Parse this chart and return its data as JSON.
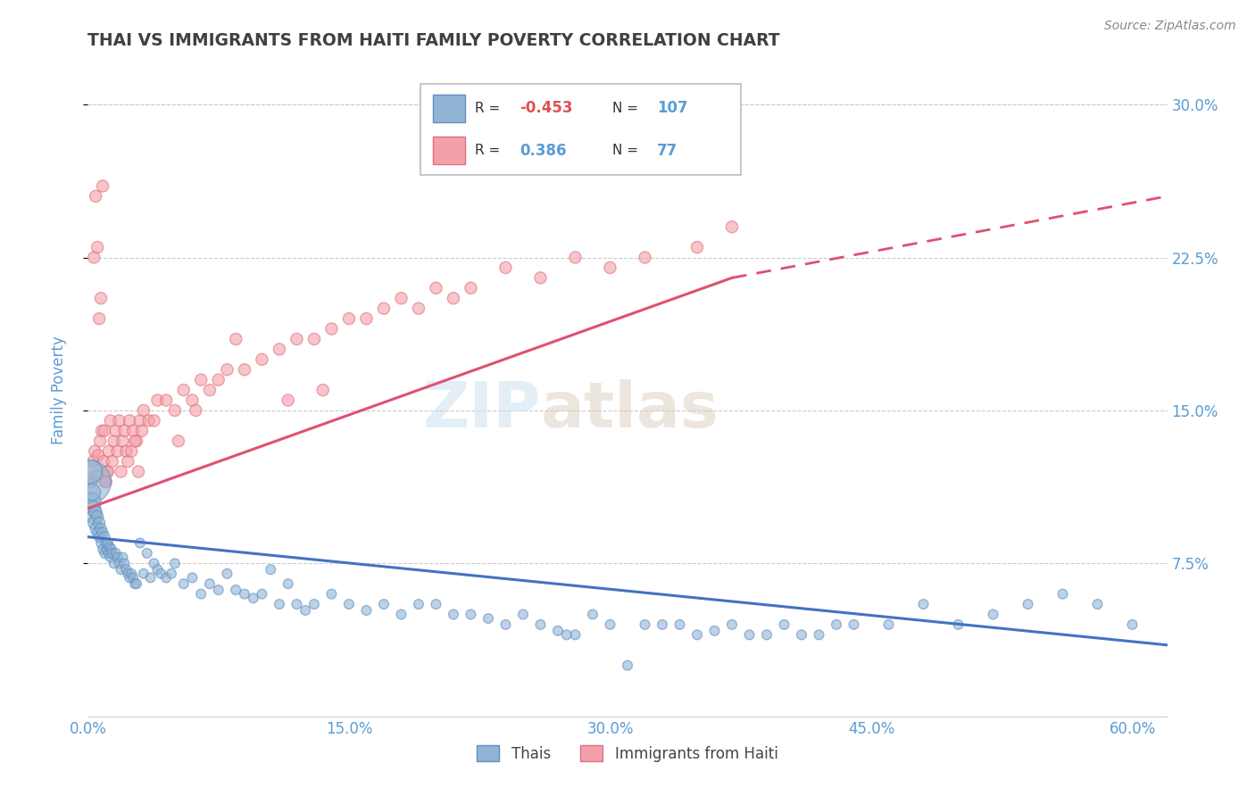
{
  "title": "THAI VS IMMIGRANTS FROM HAITI FAMILY POVERTY CORRELATION CHART",
  "source": "Source: ZipAtlas.com",
  "ylabel": "Family Poverty",
  "ylabel_ticks": [
    7.5,
    15.0,
    22.5,
    30.0
  ],
  "ylabel_tick_labels": [
    "7.5%",
    "15.0%",
    "22.5%",
    "30.0%"
  ],
  "xlim": [
    0.0,
    62.0
  ],
  "ylim": [
    0.0,
    32.0
  ],
  "watermark_text": "ZIP",
  "watermark_text2": "atlas",
  "thai_color": "#92b4d4",
  "haiti_color": "#f4a0a8",
  "thai_edge_color": "#6090c0",
  "haiti_edge_color": "#e07080",
  "thai_R": -0.453,
  "thai_N": 107,
  "haiti_R": 0.386,
  "haiti_N": 77,
  "legend_thai_label": "Thais",
  "legend_haiti_label": "Immigrants from Haiti",
  "grid_color": "#cccccc",
  "title_color": "#404040",
  "axis_label_color": "#5b9bd5",
  "tick_label_color": "#5b9bd5",
  "legend_R_neg_color": "#e05050",
  "legend_R_pos_color": "#5b9bd5",
  "legend_N_color": "#5b9bd5",
  "trend_thai_color": "#4472c4",
  "trend_haiti_color": "#e05070",
  "trend_thai_x0": 0.0,
  "trend_thai_y0": 8.8,
  "trend_thai_x1": 62.0,
  "trend_thai_y1": 3.5,
  "trend_haiti_x0": 0.0,
  "trend_haiti_y0": 10.2,
  "trend_haiti_solid_x1": 37.0,
  "trend_haiti_solid_y1": 21.5,
  "trend_haiti_dash_x1": 62.0,
  "trend_haiti_dash_y1": 25.5,
  "thai_scatter_x": [
    0.1,
    0.15,
    0.2,
    0.25,
    0.3,
    0.35,
    0.4,
    0.45,
    0.5,
    0.55,
    0.6,
    0.65,
    0.7,
    0.75,
    0.8,
    0.85,
    0.9,
    0.95,
    1.0,
    1.05,
    1.1,
    1.15,
    1.2,
    1.25,
    1.3,
    1.35,
    1.4,
    1.5,
    1.6,
    1.7,
    1.8,
    1.9,
    2.0,
    2.1,
    2.2,
    2.3,
    2.4,
    2.5,
    2.6,
    2.7,
    2.8,
    3.0,
    3.2,
    3.4,
    3.6,
    3.8,
    4.0,
    4.2,
    4.5,
    4.8,
    5.0,
    5.5,
    6.0,
    6.5,
    7.0,
    7.5,
    8.0,
    8.5,
    9.0,
    9.5,
    10.0,
    10.5,
    11.0,
    11.5,
    12.0,
    12.5,
    13.0,
    14.0,
    15.0,
    16.0,
    17.0,
    18.0,
    19.0,
    20.0,
    21.0,
    22.0,
    23.0,
    24.0,
    25.0,
    26.0,
    27.0,
    28.0,
    29.0,
    30.0,
    32.0,
    34.0,
    36.0,
    38.0,
    40.0,
    42.0,
    44.0,
    46.0,
    48.0,
    50.0,
    52.0,
    54.0,
    56.0,
    58.0,
    60.0,
    27.5,
    31.0,
    33.0,
    35.0,
    37.0,
    39.0,
    41.0,
    43.0
  ],
  "thai_scatter_y": [
    11.5,
    12.0,
    10.5,
    11.0,
    10.2,
    9.8,
    9.5,
    10.0,
    9.2,
    9.8,
    9.0,
    9.5,
    8.8,
    9.2,
    8.5,
    9.0,
    8.2,
    8.8,
    8.0,
    8.5,
    8.2,
    8.5,
    8.0,
    8.3,
    7.8,
    8.2,
    8.0,
    7.5,
    8.0,
    7.8,
    7.5,
    7.2,
    7.8,
    7.5,
    7.2,
    7.0,
    6.8,
    7.0,
    6.8,
    6.5,
    6.5,
    8.5,
    7.0,
    8.0,
    6.8,
    7.5,
    7.2,
    7.0,
    6.8,
    7.0,
    7.5,
    6.5,
    6.8,
    6.0,
    6.5,
    6.2,
    7.0,
    6.2,
    6.0,
    5.8,
    6.0,
    7.2,
    5.5,
    6.5,
    5.5,
    5.2,
    5.5,
    6.0,
    5.5,
    5.2,
    5.5,
    5.0,
    5.5,
    5.5,
    5.0,
    5.0,
    4.8,
    4.5,
    5.0,
    4.5,
    4.2,
    4.0,
    5.0,
    4.5,
    4.5,
    4.5,
    4.2,
    4.0,
    4.5,
    4.0,
    4.5,
    4.5,
    5.5,
    4.5,
    5.0,
    5.5,
    6.0,
    5.5,
    4.5,
    4.0,
    2.5,
    4.5,
    4.0,
    4.5,
    4.0,
    4.0,
    4.5
  ],
  "thai_scatter_sizes": [
    400,
    120,
    80,
    60,
    50,
    45,
    40,
    35,
    35,
    30,
    30,
    28,
    28,
    26,
    26,
    25,
    25,
    24,
    24,
    22,
    22,
    22,
    22,
    20,
    20,
    20,
    20,
    20,
    20,
    20,
    20,
    20,
    20,
    20,
    20,
    20,
    20,
    20,
    20,
    20,
    20,
    20,
    20,
    20,
    20,
    20,
    20,
    20,
    20,
    20,
    20,
    20,
    20,
    20,
    20,
    20,
    20,
    20,
    20,
    20,
    20,
    20,
    20,
    20,
    20,
    20,
    20,
    20,
    20,
    20,
    20,
    20,
    20,
    20,
    20,
    20,
    20,
    20,
    20,
    20,
    20,
    20,
    20,
    20,
    20,
    20,
    20,
    20,
    20,
    20,
    20,
    20,
    20,
    20,
    20,
    20,
    20,
    20,
    20,
    20,
    20,
    20,
    20,
    20,
    20,
    20,
    20
  ],
  "haiti_scatter_x": [
    0.2,
    0.3,
    0.4,
    0.5,
    0.6,
    0.7,
    0.8,
    0.9,
    1.0,
    1.1,
    1.2,
    1.3,
    1.4,
    1.5,
    1.6,
    1.7,
    1.8,
    1.9,
    2.0,
    2.1,
    2.2,
    2.3,
    2.4,
    2.5,
    2.6,
    2.8,
    3.0,
    3.2,
    3.5,
    4.0,
    4.5,
    5.0,
    5.5,
    6.0,
    6.5,
    7.0,
    7.5,
    8.0,
    9.0,
    10.0,
    11.0,
    12.0,
    13.0,
    14.0,
    15.0,
    16.0,
    17.0,
    18.0,
    19.0,
    20.0,
    21.0,
    22.0,
    24.0,
    26.0,
    28.0,
    30.0,
    32.0,
    35.0,
    37.0,
    0.35,
    0.45,
    0.55,
    0.65,
    0.75,
    0.85,
    0.95,
    1.05,
    1.15,
    2.7,
    2.9,
    3.1,
    3.8,
    5.2,
    6.2,
    8.5,
    11.5,
    13.5
  ],
  "haiti_scatter_y": [
    11.5,
    12.5,
    13.0,
    11.8,
    12.8,
    13.5,
    14.0,
    12.5,
    11.5,
    12.0,
    13.0,
    14.5,
    12.5,
    13.5,
    14.0,
    13.0,
    14.5,
    12.0,
    13.5,
    14.0,
    13.0,
    12.5,
    14.5,
    13.0,
    14.0,
    13.5,
    14.5,
    15.0,
    14.5,
    15.5,
    15.5,
    15.0,
    16.0,
    15.5,
    16.5,
    16.0,
    16.5,
    17.0,
    17.0,
    17.5,
    18.0,
    18.5,
    18.5,
    19.0,
    19.5,
    19.5,
    20.0,
    20.5,
    20.0,
    21.0,
    20.5,
    21.0,
    22.0,
    21.5,
    22.5,
    22.0,
    22.5,
    23.0,
    24.0,
    22.5,
    25.5,
    23.0,
    19.5,
    20.5,
    26.0,
    14.0,
    11.5,
    12.0,
    13.5,
    12.0,
    14.0,
    14.5,
    13.5,
    15.0,
    18.5,
    15.5,
    16.0
  ],
  "haiti_scatter_sizes": [
    30,
    30,
    30,
    30,
    30,
    30,
    30,
    30,
    30,
    30,
    30,
    30,
    30,
    30,
    30,
    30,
    30,
    30,
    30,
    30,
    30,
    30,
    30,
    30,
    30,
    30,
    30,
    30,
    30,
    30,
    30,
    30,
    30,
    30,
    30,
    30,
    30,
    30,
    30,
    30,
    30,
    30,
    30,
    30,
    30,
    30,
    30,
    30,
    30,
    30,
    30,
    30,
    30,
    30,
    30,
    30,
    30,
    30,
    30,
    30,
    30,
    30,
    30,
    30,
    30,
    30,
    30,
    30,
    30,
    30,
    30,
    30,
    30,
    30,
    30,
    30,
    30
  ]
}
